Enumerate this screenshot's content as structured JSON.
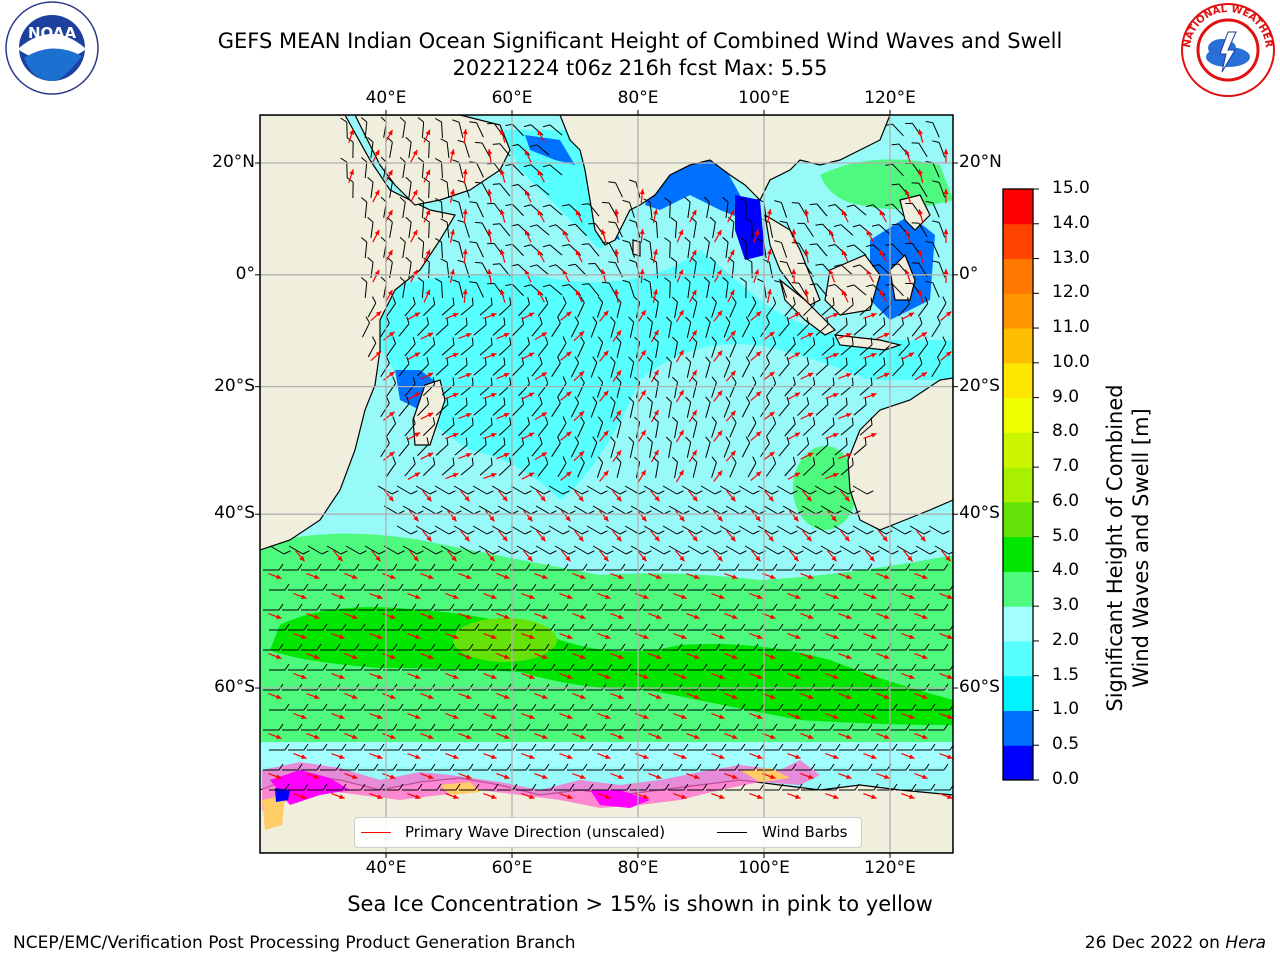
{
  "title": {
    "line1": "GEFS MEAN Indian Ocean Significant Height of Combined Wind Waves and Swell",
    "line2": "20221224 t06z 216h fcst   Max: 5.55"
  },
  "logos": {
    "left": {
      "text": "NOAA",
      "ring_text": "NATIONAL OCEANIC AND ATMOSPHERIC ADMINISTRATION · U.S. DEPARTMENT OF COMMERCE"
    },
    "right": {
      "ring_text": "NATIONAL WEATHER SERVICE"
    }
  },
  "map": {
    "lon_ticks": [
      "40°E",
      "60°E",
      "80°E",
      "100°E",
      "120°E"
    ],
    "lon_values": [
      40,
      60,
      80,
      100,
      120
    ],
    "lat_ticks": [
      "20°N",
      "0°",
      "20°S",
      "40°S",
      "60°S"
    ],
    "lat_values": [
      20,
      0,
      -20,
      -40,
      -60
    ],
    "lon_range": [
      20,
      130
    ],
    "lat_range": [
      -72,
      28
    ],
    "ocean_color": "#98f9f9",
    "land_color": "#f0eedc"
  },
  "legend": {
    "wave_direction": "Primary Wave Direction (unscaled)",
    "wind_barbs": "Wind Barbs",
    "wave_color": "#ff0000",
    "barb_color": "#000000"
  },
  "colorbar": {
    "label": "Significant Height of Combined Wind Waves and Swell [m]",
    "label_line1": "Significant Height of Combined",
    "label_line2": "Wind Waves and Swell [m]",
    "ticks": [
      "0.0",
      "0.5",
      "1.0",
      "1.5",
      "2.0",
      "3.0",
      "4.0",
      "5.0",
      "6.0",
      "7.0",
      "8.0",
      "9.0",
      "10.0",
      "11.0",
      "12.0",
      "13.0",
      "14.0",
      "15.0"
    ],
    "colors": [
      "#0000ff",
      "#0070ff",
      "#00f4ff",
      "#58ffff",
      "#a3fffe",
      "#4efa7e",
      "#00e600",
      "#64e20a",
      "#a8f000",
      "#ccf600",
      "#f0ff00",
      "#ffe600",
      "#ffbe00",
      "#ff9600",
      "#ff7800",
      "#ff4400",
      "#ff0000"
    ]
  },
  "caption": "Sea Ice Concentration > 15% is shown in pink to yellow",
  "footer": {
    "left": "NCEP/EMC/Verification Post Processing Product Generation Branch",
    "right_date": "26 Dec 2022 on ",
    "right_host": "Hera"
  }
}
